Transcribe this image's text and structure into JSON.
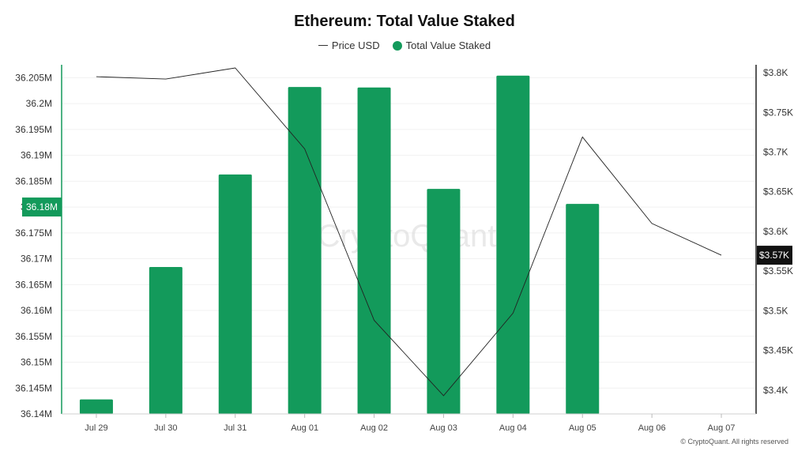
{
  "chart_data": {
    "type": "bar",
    "title": "Ethereum: Total Value Staked",
    "categories": [
      "Jul 29",
      "Jul 30",
      "Jul 31",
      "Aug 01",
      "Aug 02",
      "Aug 03",
      "Aug 04",
      "Aug 05",
      "Aug 06",
      "Aug 07"
    ],
    "series": [
      {
        "name": "Total Value Staked",
        "type": "bar",
        "axis": "left",
        "color": "#139a5b",
        "values": [
          36.1428,
          36.1684,
          36.1863,
          36.2032,
          36.2031,
          36.1835,
          36.2054,
          36.1806,
          null,
          null
        ]
      },
      {
        "name": "Price USD",
        "type": "line",
        "axis": "right",
        "color": "#222222",
        "values": [
          3795,
          3792,
          3806,
          3704,
          3488,
          3393,
          3497,
          3719,
          3610,
          3570
        ]
      }
    ],
    "left_axis": {
      "ylim": [
        36.14,
        36.2075
      ],
      "ticks": [
        "36.14M",
        "36.145M",
        "36.15M",
        "36.155M",
        "36.16M",
        "36.165M",
        "36.17M",
        "36.175M",
        "36.18M",
        "36.185M",
        "36.19M",
        "36.195M",
        "36.2M",
        "36.205M"
      ],
      "highlight_label": "36.18M"
    },
    "right_axis": {
      "ylim": [
        3370,
        3810
      ],
      "ticks": [
        "$3.4K",
        "$3.45K",
        "$3.5K",
        "$3.55K",
        "$3.6K",
        "$3.65K",
        "$3.7K",
        "$3.75K",
        "$3.8K"
      ],
      "highlight_label": "$3.57K"
    },
    "grid": true,
    "legend_position": "top-center"
  },
  "watermark": "CryptoQuant",
  "copyright": "© CryptoQuant. All rights reserved"
}
